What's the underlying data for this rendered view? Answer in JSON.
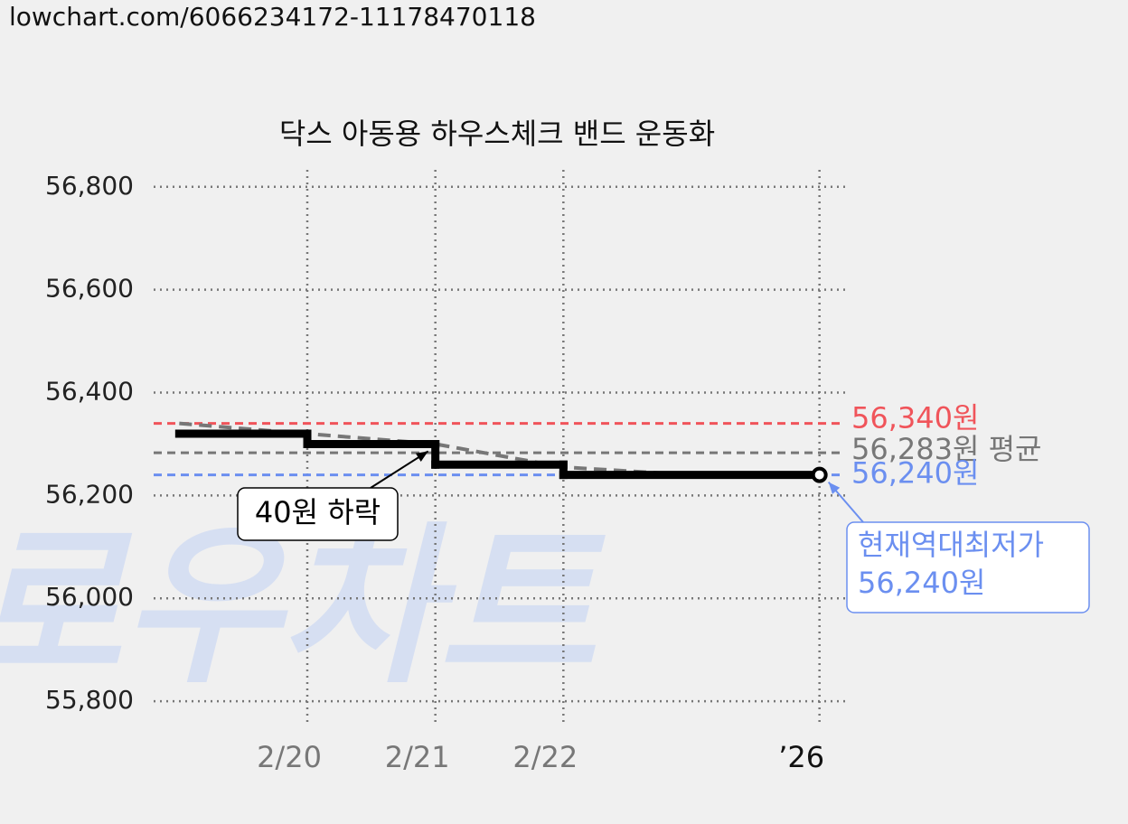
{
  "url": "lowchart.com/6066234172-11178470118",
  "chart_data": {
    "type": "line",
    "title": "닥스 아동용 하우스체크 밴드 운동화",
    "watermark": "로우차트",
    "xlim": [
      18.8,
      24.2
    ],
    "ylim": [
      55758,
      56833
    ],
    "grid": true,
    "xticks": [
      {
        "value": 20,
        "label": "2/20"
      },
      {
        "value": 21,
        "label": "2/21"
      },
      {
        "value": 22,
        "label": "2/22"
      },
      {
        "value": 24,
        "label": "’26"
      }
    ],
    "yticks": [
      {
        "value": 56800,
        "label": "56,800"
      },
      {
        "value": 56600,
        "label": "56,600"
      },
      {
        "value": 56400,
        "label": "56,400"
      },
      {
        "value": 56200,
        "label": "56,200"
      },
      {
        "value": 56000,
        "label": "56,000"
      },
      {
        "value": 55800,
        "label": "55,800"
      }
    ],
    "series": [
      {
        "color": "#000000",
        "step": true,
        "x": [
          19,
          20,
          21,
          22,
          24
        ],
        "values": [
          56320,
          56300,
          56260,
          56240,
          56240
        ]
      },
      {
        "color": "#777777",
        "dashed": true,
        "x": [
          19,
          20,
          21,
          22,
          23,
          24
        ],
        "values": [
          56340,
          56320,
          56300,
          56255,
          56240,
          56240
        ]
      }
    ],
    "reference_lines": [
      {
        "value": 56340,
        "label": "56,340원",
        "color": "#f0545a"
      },
      {
        "value": 56283,
        "label": "56,283원 평균",
        "color": "#777777"
      },
      {
        "value": 56240,
        "label": "56,240원",
        "color": "#6b8ff0"
      }
    ],
    "annotations": [
      {
        "lines": [
          "40원 하락"
        ],
        "x": 21,
        "y": 56300,
        "color": "#000000"
      },
      {
        "lines": [
          "현재역대최저가",
          "56,240원"
        ],
        "x": 24,
        "y": 56240,
        "color": "#6b8ff0"
      }
    ]
  }
}
